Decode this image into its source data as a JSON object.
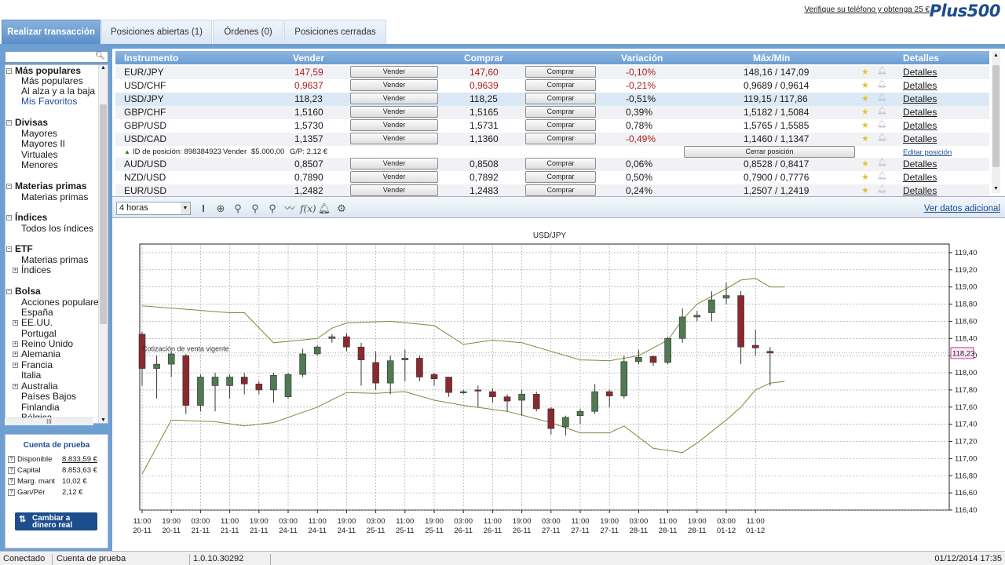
{
  "header": {
    "tabs": [
      {
        "label": "Realizar transacción",
        "active": true
      },
      {
        "label": "Posiciones abiertas (1)",
        "active": false
      },
      {
        "label": "Órdenes (0)",
        "active": false
      },
      {
        "label": "Posiciones cerradas",
        "active": false
      }
    ],
    "promo": "Verifique su teléfono y obtenga 25 €",
    "logo": "Plus500"
  },
  "sidebar": {
    "search_placeholder": "",
    "groups": [
      {
        "label": "Más populares",
        "items": [
          "Más populares",
          "Al alza y a la baja",
          "Mis Favoritos"
        ]
      },
      {
        "label": "Divisas",
        "items": [
          "Mayores",
          "Mayores II",
          "Virtuales",
          "Menores"
        ]
      },
      {
        "label": "Materias primas",
        "items": [
          "Materias primas"
        ]
      },
      {
        "label": "Índices",
        "items": [
          "Todos los índices"
        ]
      },
      {
        "label": "ETF",
        "items": [
          "Materias primas",
          "Índices"
        ]
      },
      {
        "label": "Bolsa",
        "items": [
          "Acciones populares",
          "España",
          "EE.UU.",
          "Portugal",
          "Reino Unido",
          "Alemania",
          "Francia",
          "Italia",
          "Australia",
          "Países Bajos",
          "Finlandia",
          "Bélgica"
        ]
      }
    ],
    "hscroll_label": "III"
  },
  "account": {
    "title": "Cuenta de prueba",
    "rows": [
      {
        "label": "Disponible",
        "value": "8.833,59 €"
      },
      {
        "label": "Capital",
        "value": "8.853,63 €"
      },
      {
        "label": "Marg. mant",
        "value": "10,02 €"
      },
      {
        "label": "Gan/Pér",
        "value": "2,12 €"
      }
    ],
    "real_button": "Cambiar a dinero real"
  },
  "table": {
    "headers": {
      "instrument": "Instrumento",
      "sell": "Vender",
      "buy": "Comprar",
      "change": "Variación",
      "maxmin": "Máx/Mín",
      "details": "Detalles"
    },
    "sell_button": "Vender",
    "buy_button": "Comprar",
    "details_link": "Detalles",
    "rows": [
      {
        "instrument": "EUR/JPY",
        "sell": "147,59",
        "buy": "147,60",
        "change": "-0,10%",
        "maxmin": "148,16 / 147,09"
      },
      {
        "instrument": "USD/CHF",
        "sell": "0,9637",
        "buy": "0,9639",
        "change": "-0,21%",
        "maxmin": "0,9689 / 0,9614"
      },
      {
        "instrument": "USD/JPY",
        "sell": "118,23",
        "buy": "118,25",
        "change": "-0,51%",
        "maxmin": "119,15 / 117,86"
      },
      {
        "instrument": "GBP/CHF",
        "sell": "1,5160",
        "buy": "1,5165",
        "change": "0,39%",
        "maxmin": "1,5182 / 1,5084"
      },
      {
        "instrument": "GBP/USD",
        "sell": "1,5730",
        "buy": "1,5731",
        "change": "0,78%",
        "maxmin": "1,5765 / 1,5585"
      },
      {
        "instrument": "USD/CAD",
        "sell": "1,1357",
        "buy": "1,1360",
        "change": "-0,49%",
        "maxmin": "1,1460 / 1,1347"
      },
      {
        "instrument": "AUD/USD",
        "sell": "0,8507",
        "buy": "0,8508",
        "change": "0,06%",
        "maxmin": "0,8528 / 0,8417"
      },
      {
        "instrument": "NZD/USD",
        "sell": "0,7890",
        "buy": "0,7892",
        "change": "0,50%",
        "maxmin": "0,7900 / 0,7776"
      },
      {
        "instrument": "EUR/USD",
        "sell": "1,2482",
        "buy": "1,2483",
        "change": "0,24%",
        "maxmin": "1,2507 / 1,2419"
      }
    ],
    "position": {
      "id_text": "ID de posición: 898384923",
      "direction": "Vender",
      "amount": "$5.000,00",
      "pl": "G/P: 2,12 €",
      "close_button": "Cerrar posición",
      "edit_link": "Editar posición"
    }
  },
  "chart_toolbar": {
    "timeframe": "4 horas",
    "fx_label": "f(x)",
    "more_data_link": "Ver datos adicional"
  },
  "chart_data": {
    "type": "candlestick",
    "title": "USD/JPY",
    "annotation": "Cotización de venta vigente",
    "current_price_label": "118,23",
    "current_price": 118.23,
    "ylim": [
      116.4,
      119.5
    ],
    "y_ticks": [
      "119,40",
      "119,20",
      "119,00",
      "118,80",
      "118,60",
      "118,40",
      "118,20",
      "118,00",
      "117,80",
      "117,60",
      "117,40",
      "117,20",
      "117,00",
      "116,80",
      "116,60",
      "116,40"
    ],
    "x_ticks": [
      {
        "time": "11:00",
        "date": "20-11"
      },
      {
        "time": "19:00",
        "date": "20-11"
      },
      {
        "time": "03:00",
        "date": "21-11"
      },
      {
        "time": "11:00",
        "date": "21-11"
      },
      {
        "time": "19:00",
        "date": "21-11"
      },
      {
        "time": "03:00",
        "date": "24-11"
      },
      {
        "time": "11:00",
        "date": "24-11"
      },
      {
        "time": "19:00",
        "date": "24-11"
      },
      {
        "time": "03:00",
        "date": "25-11"
      },
      {
        "time": "11:00",
        "date": "25-11"
      },
      {
        "time": "19:00",
        "date": "25-11"
      },
      {
        "time": "03:00",
        "date": "26-11"
      },
      {
        "time": "11:00",
        "date": "26-11"
      },
      {
        "time": "19:00",
        "date": "26-11"
      },
      {
        "time": "03:00",
        "date": "27-11"
      },
      {
        "time": "11:00",
        "date": "27-11"
      },
      {
        "time": "19:00",
        "date": "27-11"
      },
      {
        "time": "03:00",
        "date": "28-11"
      },
      {
        "time": "11:00",
        "date": "28-11"
      },
      {
        "time": "19:00",
        "date": "28-11"
      },
      {
        "time": "03:00",
        "date": "01-12"
      },
      {
        "time": "11:00",
        "date": "01-12"
      }
    ],
    "candles": [
      [
        118.45,
        118.05,
        118.48,
        117.85
      ],
      [
        118.05,
        118.1,
        118.2,
        117.7
      ],
      [
        118.1,
        118.22,
        118.25,
        117.95
      ],
      [
        118.2,
        117.62,
        118.22,
        117.52
      ],
      [
        117.62,
        117.95,
        117.98,
        117.55
      ],
      [
        117.85,
        117.95,
        118.0,
        117.55
      ],
      [
        117.85,
        117.95,
        117.98,
        117.7
      ],
      [
        117.95,
        117.87,
        118.0,
        117.75
      ],
      [
        117.87,
        117.8,
        117.9,
        117.75
      ],
      [
        117.8,
        117.97,
        118.0,
        117.65
      ],
      [
        117.72,
        117.98,
        118.0,
        117.7
      ],
      [
        117.98,
        118.22,
        118.28,
        117.95
      ],
      [
        118.22,
        118.3,
        118.32,
        118.2
      ],
      [
        118.4,
        118.42,
        118.45,
        118.35
      ],
      [
        118.42,
        118.3,
        118.46,
        118.25
      ],
      [
        118.3,
        118.15,
        118.35,
        117.85
      ],
      [
        118.12,
        117.88,
        118.25,
        117.8
      ],
      [
        117.88,
        118.14,
        118.2,
        117.75
      ],
      [
        118.15,
        118.17,
        118.27,
        117.9
      ],
      [
        118.17,
        117.95,
        118.2,
        117.9
      ],
      [
        117.98,
        117.93,
        118.0,
        117.85
      ],
      [
        117.95,
        117.77,
        117.95,
        117.72
      ],
      [
        117.77,
        117.78,
        117.8,
        117.75
      ],
      [
        117.8,
        117.79,
        117.85,
        117.6
      ],
      [
        117.78,
        117.72,
        117.82,
        117.65
      ],
      [
        117.72,
        117.67,
        117.75,
        117.55
      ],
      [
        117.68,
        117.75,
        117.8,
        117.5
      ],
      [
        117.75,
        117.58,
        117.78,
        117.55
      ],
      [
        117.58,
        117.35,
        117.6,
        117.28
      ],
      [
        117.37,
        117.48,
        117.5,
        117.27
      ],
      [
        117.5,
        117.55,
        117.58,
        117.4
      ],
      [
        117.55,
        117.78,
        117.87,
        117.52
      ],
      [
        117.78,
        117.73,
        117.8,
        117.6
      ],
      [
        117.73,
        118.13,
        118.2,
        117.7
      ],
      [
        118.13,
        118.18,
        118.27,
        118.1
      ],
      [
        118.19,
        118.12,
        118.2,
        118.08
      ],
      [
        118.12,
        118.4,
        118.42,
        118.1
      ],
      [
        118.4,
        118.65,
        118.75,
        118.35
      ],
      [
        118.65,
        118.67,
        118.72,
        118.6
      ],
      [
        118.7,
        118.85,
        118.95,
        118.6
      ],
      [
        118.87,
        118.9,
        119.05,
        118.8
      ],
      [
        118.9,
        118.3,
        118.95,
        118.1
      ],
      [
        118.32,
        118.29,
        118.5,
        118.2
      ],
      [
        118.25,
        118.23,
        118.3,
        117.85
      ]
    ],
    "band_upper": [
      [
        0,
        118.78
      ],
      [
        3,
        118.74
      ],
      [
        6,
        118.7
      ],
      [
        7,
        118.7
      ],
      [
        9,
        118.35
      ],
      [
        12,
        118.4
      ],
      [
        13,
        118.52
      ],
      [
        14,
        118.58
      ],
      [
        17,
        118.6
      ],
      [
        20,
        118.55
      ],
      [
        22,
        118.33
      ],
      [
        24,
        118.38
      ],
      [
        26,
        118.35
      ],
      [
        28,
        118.25
      ],
      [
        30,
        118.15
      ],
      [
        32,
        118.14
      ],
      [
        34,
        118.2
      ],
      [
        36,
        118.38
      ],
      [
        37,
        118.62
      ],
      [
        38,
        118.8
      ],
      [
        40,
        118.98
      ],
      [
        41,
        119.08
      ],
      [
        42,
        119.1
      ],
      [
        43,
        119.0
      ],
      [
        44,
        119.0
      ]
    ],
    "band_lower": [
      [
        0,
        116.82
      ],
      [
        2,
        117.45
      ],
      [
        5,
        117.43
      ],
      [
        7,
        117.38
      ],
      [
        9,
        117.42
      ],
      [
        12,
        117.6
      ],
      [
        14,
        117.77
      ],
      [
        16,
        117.76
      ],
      [
        18,
        117.78
      ],
      [
        20,
        117.68
      ],
      [
        22,
        117.62
      ],
      [
        25,
        117.55
      ],
      [
        28,
        117.42
      ],
      [
        30,
        117.3
      ],
      [
        32,
        117.3
      ],
      [
        33,
        117.38
      ],
      [
        35,
        117.12
      ],
      [
        37,
        117.07
      ],
      [
        38,
        117.18
      ],
      [
        40,
        117.45
      ],
      [
        41,
        117.6
      ],
      [
        42,
        117.8
      ],
      [
        43,
        117.88
      ],
      [
        44,
        117.9
      ]
    ]
  },
  "status": {
    "connection": "Conectado",
    "account_type": "Cuenta de prueba",
    "version": "1.0.10.30292",
    "datetime": "01/12/2014 17:35"
  }
}
